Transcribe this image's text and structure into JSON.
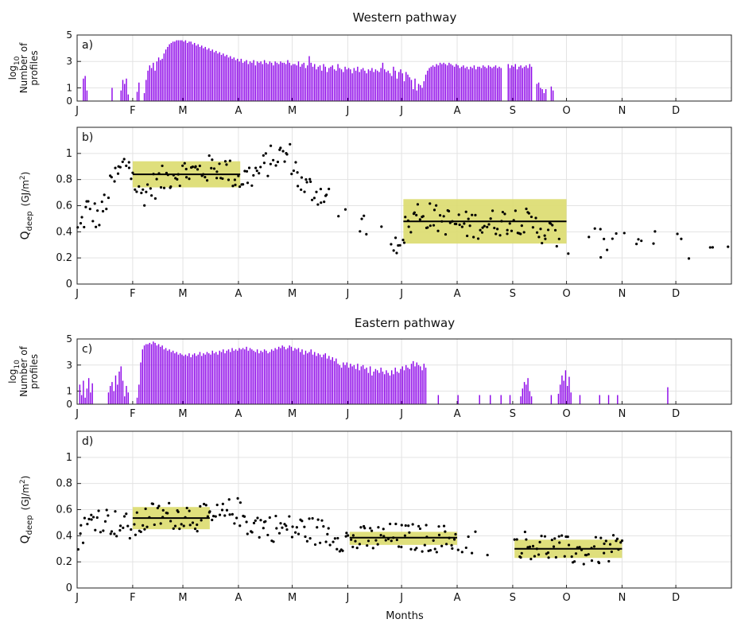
{
  "figure": {
    "title_top": "Western pathway",
    "title_bottom": "Eastern pathway",
    "xlabel": "Months",
    "month_ticks": [
      "J",
      "F",
      "M",
      "A",
      "M",
      "J",
      "J",
      "A",
      "S",
      "O",
      "N",
      "D"
    ]
  },
  "chart_data": [
    {
      "id": "a",
      "label": "a)",
      "type": "bar",
      "ylabel_lines": [
        "log",
        "Number of",
        "profiles"
      ],
      "ylabel_subscript": "10",
      "ylim": [
        0,
        5
      ],
      "yticks": [
        0,
        1,
        3,
        5
      ],
      "xlim_days": [
        0,
        365
      ],
      "bar_color": "#8B00E8",
      "segments": [
        {
          "start": 3,
          "end": 6,
          "values": [
            1.7,
            1.9,
            0.8
          ]
        },
        {
          "start": 19,
          "end": 20,
          "values": [
            1.0
          ]
        },
        {
          "start": 24,
          "end": 29,
          "values": [
            0.8,
            1.6,
            1.3,
            1.7,
            0.5
          ]
        },
        {
          "start": 33,
          "end": 35,
          "values": [
            0.7,
            1.4
          ]
        },
        {
          "start": 37,
          "end": 48,
          "values": [
            0.6,
            1.6,
            2.3,
            2.7,
            2.5,
            2.9,
            2.3,
            3.0,
            3.3,
            3.1,
            3.2
          ]
        },
        {
          "start": 48,
          "end": 58,
          "values": [
            3.6,
            3.9,
            4.1,
            4.3,
            4.4,
            4.5,
            4.5,
            4.6,
            4.6,
            4.6
          ]
        },
        {
          "start": 58,
          "end": 75,
          "values": [
            4.6,
            4.5,
            4.6,
            4.4,
            4.5,
            4.5,
            4.3,
            4.4,
            4.2,
            4.3,
            4.1,
            4.2,
            4.0,
            4.1,
            3.9,
            4.0,
            3.8
          ]
        },
        {
          "start": 75,
          "end": 91,
          "values": [
            3.9,
            3.7,
            3.8,
            3.6,
            3.7,
            3.5,
            3.6,
            3.4,
            3.5,
            3.3,
            3.4,
            3.2,
            3.3,
            3.1,
            3.2,
            3.0
          ]
        },
        {
          "start": 91,
          "end": 121,
          "values": [
            3.2,
            2.9,
            3.0,
            3.1,
            2.8,
            3.0,
            2.9,
            3.1,
            2.7,
            3.0,
            2.9,
            3.0,
            2.8,
            3.1,
            2.9,
            2.8,
            3.0,
            2.9,
            2.7,
            3.0,
            2.9,
            2.8,
            3.0,
            2.9,
            2.9,
            2.8,
            3.1,
            2.9,
            2.7,
            2.8
          ]
        },
        {
          "start": 121,
          "end": 152,
          "values": [
            2.8,
            2.7,
            3.0,
            2.6,
            2.8,
            2.9,
            2.5,
            2.7,
            3.4,
            2.9,
            2.6,
            2.8,
            2.4,
            2.6,
            2.7,
            2.3,
            2.8,
            2.6,
            2.2,
            2.5,
            2.6,
            2.7,
            2.4,
            2.3,
            2.8,
            2.5,
            2.4,
            2.2,
            2.6,
            2.4,
            2.5
          ]
        },
        {
          "start": 152,
          "end": 175,
          "values": [
            2.4,
            2.1,
            2.5,
            2.3,
            2.6,
            2.2,
            2.4,
            2.5,
            2.3,
            2.1,
            2.4,
            2.3,
            2.5,
            2.2,
            2.4,
            2.3,
            2.2,
            2.5,
            2.9,
            2.4,
            2.2,
            2.3,
            2.1
          ]
        },
        {
          "start": 175,
          "end": 193,
          "values": [
            1.9,
            2.6,
            2.3,
            1.7,
            2.2,
            2.4,
            2.1,
            1.5,
            2.2,
            2.0,
            1.8,
            1.6,
            0.9,
            1.7,
            0.8,
            1.3,
            1.2,
            1.0
          ]
        },
        {
          "start": 193,
          "end": 224,
          "values": [
            1.5,
            2.0,
            2.3,
            2.5,
            2.6,
            2.7,
            2.6,
            2.8,
            2.7,
            2.9,
            2.8,
            2.9,
            2.8,
            2.7,
            2.9,
            2.8,
            2.7,
            2.6,
            2.8,
            2.7,
            2.5,
            2.6,
            2.7,
            2.5,
            2.6,
            2.4,
            2.6,
            2.5,
            2.7,
            2.4,
            2.6
          ]
        },
        {
          "start": 224,
          "end": 237,
          "values": [
            2.6,
            2.5,
            2.7,
            2.6,
            2.5,
            2.7,
            2.6,
            2.5,
            2.6,
            2.7,
            2.5,
            2.6,
            2.5
          ]
        },
        {
          "start": 240,
          "end": 254,
          "values": [
            2.8,
            2.5,
            2.7,
            2.6,
            2.8,
            2.4,
            2.6,
            2.7,
            2.5,
            2.6,
            2.7,
            2.5,
            2.8,
            2.6
          ]
        },
        {
          "start": 256,
          "end": 262,
          "values": [
            1.3,
            1.4,
            1.0,
            0.9,
            0.6,
            0.9
          ]
        },
        {
          "start": 264,
          "end": 266,
          "values": [
            1.1,
            0.8
          ]
        }
      ]
    },
    {
      "id": "b",
      "label": "b)",
      "type": "scatter",
      "ylabel_main": "Q",
      "ylabel_sub": "deep",
      "ylabel_unit": "(GJ/m",
      "ylabel_sup": "2",
      "ylabel_close": ")",
      "ylim": [
        0,
        1.2
      ],
      "yticks": [
        0,
        0.2,
        0.4,
        0.6,
        0.8,
        1
      ],
      "ytick_labels": [
        "0",
        "0.2",
        "0.4",
        "0.6",
        "0.8",
        "1"
      ],
      "xlim_days": [
        0,
        365
      ],
      "bands": [
        {
          "start": 31,
          "end": 91,
          "low": 0.74,
          "high": 0.94,
          "mean": 0.84
        },
        {
          "start": 182,
          "end": 273,
          "low": 0.31,
          "high": 0.65,
          "mean": 0.48
        }
      ],
      "band_color": "#DCDC6E",
      "point_color": "#000000"
    },
    {
      "id": "c",
      "label": "c)",
      "type": "bar",
      "ylabel_lines": [
        "log",
        "Number of",
        "profiles"
      ],
      "ylabel_subscript": "10",
      "ylim": [
        0,
        5
      ],
      "yticks": [
        0,
        1,
        3,
        5
      ],
      "xlim_days": [
        0,
        365
      ],
      "bar_color": "#8B00E8",
      "segments": [
        {
          "start": 1,
          "end": 9,
          "values": [
            1.5,
            0.7,
            1.8,
            0.5,
            1.2,
            2.0,
            0.9,
            1.6
          ]
        },
        {
          "start": 17,
          "end": 26,
          "values": [
            0.9,
            1.4,
            1.7,
            1.0,
            2.2,
            1.5,
            2.5,
            2.9,
            1.8
          ]
        },
        {
          "start": 26,
          "end": 29,
          "values": [
            0.6,
            1.4,
            0.9
          ]
        },
        {
          "start": 33,
          "end": 40,
          "values": [
            0.5,
            1.5,
            3.2,
            4.2,
            4.5,
            4.6,
            4.6
          ]
        },
        {
          "start": 40,
          "end": 60,
          "values": [
            4.7,
            4.6,
            4.8,
            4.7,
            4.5,
            4.6,
            4.4,
            4.5,
            4.2,
            4.3,
            4.1,
            4.2,
            4.0,
            4.1,
            3.9,
            4.0,
            3.8,
            3.9,
            3.8,
            3.7
          ]
        },
        {
          "start": 60,
          "end": 92,
          "values": [
            3.8,
            3.7,
            3.9,
            3.6,
            3.8,
            3.9,
            3.7,
            3.8,
            4.0,
            3.7,
            3.9,
            3.8,
            4.0,
            3.9,
            3.8,
            4.1,
            3.9,
            4.0,
            3.8,
            4.1,
            4.0,
            4.2,
            3.9,
            4.1,
            4.2,
            4.0,
            4.3,
            4.1,
            4.2,
            4.1,
            4.3,
            4.2
          ]
        },
        {
          "start": 92,
          "end": 123,
          "values": [
            4.3,
            4.2,
            4.4,
            4.1,
            4.3,
            4.2,
            4.1,
            4.0,
            4.2,
            3.9,
            4.1,
            4.0,
            4.2,
            4.1,
            3.9,
            4.0,
            4.2,
            4.1,
            4.3,
            4.2,
            4.4,
            4.3,
            4.5,
            4.4,
            4.2,
            4.3,
            4.5,
            4.4,
            4.1,
            4.3,
            4.2
          ]
        },
        {
          "start": 123,
          "end": 150,
          "values": [
            4.3,
            4.0,
            4.2,
            3.8,
            4.1,
            3.9,
            4.0,
            4.2,
            3.8,
            4.0,
            3.7,
            3.9,
            3.8,
            3.6,
            3.8,
            3.9,
            3.5,
            3.7,
            3.4,
            3.6,
            3.3,
            3.5,
            3.1,
            3.0,
            2.8,
            3.2,
            3.0
          ]
        },
        {
          "start": 150,
          "end": 173,
          "values": [
            3.2,
            2.8,
            3.1,
            2.9,
            3.0,
            2.7,
            3.1,
            2.6,
            2.9,
            3.0,
            2.7,
            2.8,
            2.4,
            2.9,
            2.2,
            2.5,
            2.7,
            2.6,
            2.4,
            2.8,
            2.5,
            2.3,
            2.6
          ]
        },
        {
          "start": 173,
          "end": 191,
          "values": [
            2.4,
            2.2,
            2.6,
            2.3,
            2.8,
            2.5,
            2.4,
            2.7,
            2.9,
            2.6,
            3.0,
            2.8,
            2.7,
            3.1,
            3.3,
            2.9,
            3.2,
            3.0
          ]
        },
        {
          "start": 191,
          "end": 195,
          "values": [
            2.9,
            2.6,
            3.1,
            2.8
          ]
        },
        {
          "start": 201,
          "end": 202,
          "values": [
            0.7
          ]
        },
        {
          "start": 212,
          "end": 213,
          "values": [
            0.7
          ]
        },
        {
          "start": 224,
          "end": 225,
          "values": [
            0.7
          ]
        },
        {
          "start": 230,
          "end": 231,
          "values": [
            0.7
          ]
        },
        {
          "start": 236,
          "end": 237,
          "values": [
            0.7
          ]
        },
        {
          "start": 241,
          "end": 242,
          "values": [
            0.7
          ]
        },
        {
          "start": 247,
          "end": 254,
          "values": [
            0.6,
            1.2,
            1.7,
            1.5,
            2.0,
            1.0,
            0.6
          ]
        },
        {
          "start": 264,
          "end": 265,
          "values": [
            0.7
          ]
        },
        {
          "start": 268,
          "end": 276,
          "values": [
            0.8,
            1.5,
            2.2,
            1.8,
            2.6,
            1.4,
            2.1,
            0.9
          ]
        },
        {
          "start": 280,
          "end": 281,
          "values": [
            0.7
          ]
        },
        {
          "start": 291,
          "end": 292,
          "values": [
            0.7
          ]
        },
        {
          "start": 296,
          "end": 297,
          "values": [
            0.7
          ]
        },
        {
          "start": 301,
          "end": 302,
          "values": [
            0.7
          ]
        },
        {
          "start": 329,
          "end": 330,
          "values": [
            1.3
          ]
        }
      ]
    },
    {
      "id": "d",
      "label": "d)",
      "type": "scatter",
      "ylabel_main": "Q",
      "ylabel_sub": "deep",
      "ylabel_unit": "(GJ/m",
      "ylabel_sup": "2",
      "ylabel_close": ")",
      "ylim": [
        0,
        1.2
      ],
      "yticks": [
        0,
        0.2,
        0.4,
        0.6,
        0.8,
        1
      ],
      "ytick_labels": [
        "0",
        "0.2",
        "0.4",
        "0.6",
        "0.8",
        "1"
      ],
      "xlim_days": [
        0,
        365
      ],
      "bands": [
        {
          "start": 31,
          "end": 74,
          "low": 0.45,
          "high": 0.62,
          "mean": 0.535
        },
        {
          "start": 152,
          "end": 212,
          "low": 0.33,
          "high": 0.43,
          "mean": 0.385
        },
        {
          "start": 244,
          "end": 304,
          "low": 0.23,
          "high": 0.37,
          "mean": 0.3
        }
      ],
      "band_color": "#DCDC6E",
      "point_color": "#000000"
    }
  ]
}
